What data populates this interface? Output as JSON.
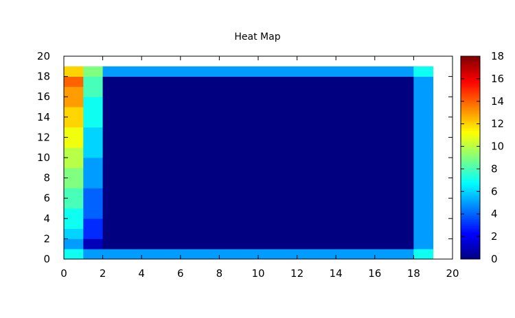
{
  "chart_data": {
    "type": "heatmap",
    "title": "Heat Map",
    "xlabel": "",
    "ylabel": "",
    "xlim": [
      0,
      20
    ],
    "ylim": [
      0,
      20
    ],
    "x_ticks": [
      "0",
      "2",
      "4",
      "6",
      "8",
      "10",
      "12",
      "14",
      "16",
      "18",
      "20"
    ],
    "y_ticks": [
      "0",
      "2",
      "4",
      "6",
      "8",
      "10",
      "12",
      "14",
      "16",
      "18",
      "20"
    ],
    "colorbar": {
      "range": [
        0,
        18
      ],
      "ticks": [
        "0",
        "2",
        "4",
        "6",
        "8",
        "10",
        "12",
        "14",
        "16",
        "18"
      ],
      "colormap": "jet"
    },
    "grid": false,
    "legend": "none",
    "cells_description_note": "",
    "columns_x": [
      0,
      1,
      2,
      3,
      4,
      5,
      6,
      7,
      8,
      9,
      10,
      11,
      12,
      13,
      14,
      15,
      16,
      17,
      18
    ],
    "rows_y": [
      0,
      1,
      2,
      3,
      4,
      5,
      6,
      7,
      8,
      9,
      10,
      11,
      12,
      13,
      14,
      15,
      16,
      17,
      18
    ],
    "column0_values": [
      7,
      5,
      6,
      7,
      7,
      8,
      8,
      9,
      9,
      10,
      10,
      11,
      11,
      12,
      12,
      13,
      13,
      14,
      12
    ],
    "column1_values": [
      5,
      1,
      3,
      3,
      4,
      4,
      4,
      5,
      5,
      5,
      6,
      6,
      6,
      7,
      7,
      7,
      8,
      8,
      9
    ],
    "column18_values": [
      7,
      5,
      5,
      5,
      5,
      5,
      5,
      5,
      5,
      5,
      5,
      5,
      5,
      5,
      5,
      5,
      5,
      5,
      7
    ],
    "bottom_row_value": 5,
    "top_row_value": 5,
    "interior_value": 0
  }
}
